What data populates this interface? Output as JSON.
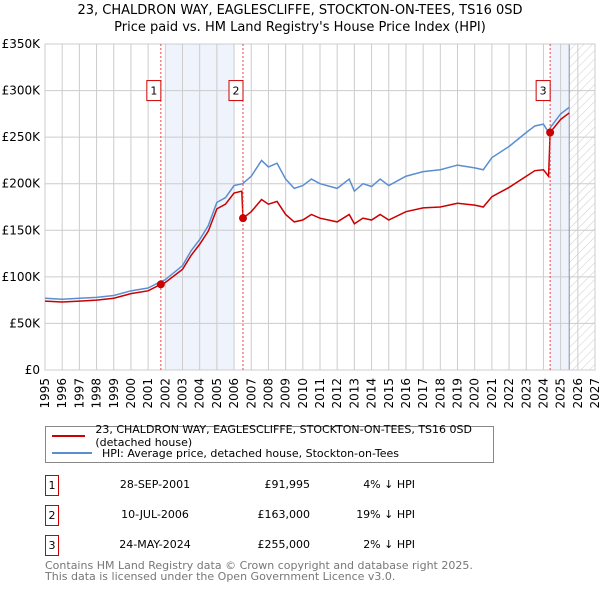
{
  "title": "23, CHALDRON WAY, EAGLESCLIFFE, STOCKTON-ON-TEES, TS16 0SD",
  "subtitle": "Price paid vs. HM Land Registry's House Price Index (HPI)",
  "chart_data": {
    "type": "line",
    "title": "23, CHALDRON WAY, EAGLESCLIFFE, STOCKTON-ON-TEES, TS16 0SD — Price paid vs. HM Land Registry's House Price Index (HPI)",
    "xlim": [
      1995,
      2027
    ],
    "ylim": [
      0,
      350000
    ],
    "x_ticks": [
      "1995",
      "1996",
      "1997",
      "1998",
      "1999",
      "2000",
      "2001",
      "2002",
      "2003",
      "2004",
      "2005",
      "2006",
      "2007",
      "2008",
      "2009",
      "2010",
      "2011",
      "2012",
      "2013",
      "2014",
      "2015",
      "2016",
      "2017",
      "2018",
      "2019",
      "2020",
      "2021",
      "2022",
      "2023",
      "2024",
      "2025",
      "2026",
      "2027"
    ],
    "y_ticks": [
      {
        "v": 0,
        "label": "£0"
      },
      {
        "v": 50000,
        "label": "£50K"
      },
      {
        "v": 100000,
        "label": "£100K"
      },
      {
        "v": 150000,
        "label": "£150K"
      },
      {
        "v": 200000,
        "label": "£200K"
      },
      {
        "v": 250000,
        "label": "£250K"
      },
      {
        "v": 300000,
        "label": "£300K"
      },
      {
        "v": 350000,
        "label": "£350K"
      }
    ],
    "grid": true,
    "shaded_ranges": [
      [
        2002.0,
        2006.0
      ],
      [
        2024.39,
        2025.5
      ]
    ],
    "forecast_from": 2025.5,
    "series": [
      {
        "name": "23, CHALDRON WAY, EAGLESCLIFFE, STOCKTON-ON-TEES, TS16 0SD (detached house)",
        "color": "#cc0000",
        "x": [
          1995,
          1996,
          1997,
          1998,
          1999,
          2000,
          2001,
          2001.74,
          2002,
          2003,
          2003.5,
          2004,
          2004.5,
          2005,
          2005.5,
          2006,
          2006.45,
          2006.52,
          2007,
          2007.6,
          2008,
          2008.5,
          2009,
          2009.5,
          2010,
          2010.5,
          2011,
          2012,
          2012.7,
          2013,
          2013.5,
          2014,
          2014.5,
          2015,
          2016,
          2017,
          2018,
          2019,
          2020,
          2020.5,
          2021,
          2022,
          2023,
          2023.5,
          2024,
          2024.3,
          2024.39,
          2025,
          2025.5
        ],
        "y": [
          74000,
          73000,
          74000,
          75000,
          77000,
          82000,
          85000,
          91995,
          94000,
          108000,
          123000,
          135000,
          149000,
          173000,
          178000,
          190000,
          192000,
          163000,
          170000,
          183000,
          178000,
          181000,
          167000,
          159000,
          161000,
          167000,
          163000,
          159000,
          167000,
          157000,
          163000,
          161000,
          167000,
          161000,
          170000,
          174000,
          175000,
          179000,
          177000,
          175000,
          186000,
          196000,
          208000,
          214000,
          215000,
          208000,
          255000,
          269000,
          276000
        ]
      },
      {
        "name": "HPI: Average price, detached house, Stockton-on-Tees",
        "color": "#5b8ed1",
        "x": [
          1995,
          1996,
          1997,
          1998,
          1999,
          2000,
          2001,
          2001.74,
          2002,
          2003,
          2003.5,
          2004,
          2004.5,
          2005,
          2005.5,
          2006,
          2006.5,
          2007,
          2007.6,
          2008,
          2008.5,
          2009,
          2009.5,
          2010,
          2010.5,
          2011,
          2012,
          2012.7,
          2013,
          2013.5,
          2014,
          2014.5,
          2015,
          2016,
          2017,
          2018,
          2019,
          2020,
          2020.5,
          2021,
          2022,
          2023,
          2023.5,
          2024,
          2024.3,
          2024.39,
          2025,
          2025.5
        ],
        "y": [
          77000,
          76000,
          77000,
          78000,
          80000,
          85000,
          88000,
          95000,
          97000,
          112000,
          128000,
          140000,
          155000,
          180000,
          185000,
          198000,
          200000,
          208000,
          225000,
          218000,
          222000,
          205000,
          195000,
          198000,
          205000,
          200000,
          195000,
          205000,
          192000,
          200000,
          197000,
          205000,
          198000,
          208000,
          213000,
          215000,
          220000,
          217000,
          215000,
          228000,
          240000,
          255000,
          262000,
          264000,
          255000,
          260000,
          275000,
          282000
        ]
      }
    ],
    "annotations": [
      {
        "label": "1",
        "x": 2001.74,
        "y": 91995
      },
      {
        "label": "2",
        "x": 2006.52,
        "y": 163000
      },
      {
        "label": "3",
        "x": 2024.39,
        "y": 255000
      }
    ]
  },
  "legend": {
    "property": "23, CHALDRON WAY, EAGLESCLIFFE, STOCKTON-ON-TEES, TS16 0SD (detached house)",
    "hpi": "HPI: Average price, detached house, Stockton-on-Tees"
  },
  "sales": [
    {
      "num": "1",
      "date": "28-SEP-2001",
      "price": "£91,995",
      "delta": "4% ↓ HPI"
    },
    {
      "num": "2",
      "date": "10-JUL-2006",
      "price": "£163,000",
      "delta": "19% ↓ HPI"
    },
    {
      "num": "3",
      "date": "24-MAY-2024",
      "price": "£255,000",
      "delta": "2% ↓ HPI"
    }
  ],
  "footer": {
    "line1": "Contains HM Land Registry data © Crown copyright and database right 2025.",
    "line2": "This data is licensed under the Open Government Licence v3.0."
  }
}
